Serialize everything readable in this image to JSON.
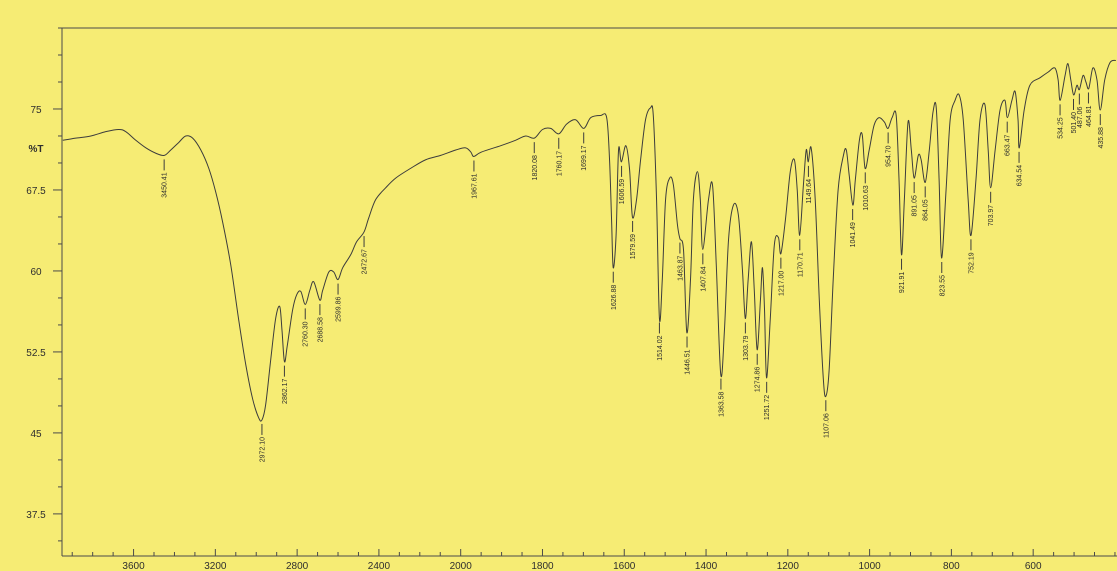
{
  "chart_data": {
    "type": "line",
    "ylabel": "%T",
    "xlim": [
      3950,
      395
    ],
    "ylim": [
      33.6,
      82.5
    ],
    "x_scale_change": 2000,
    "x_ticks": [
      3600,
      3200,
      2800,
      2400,
      2000,
      1800,
      1600,
      1400,
      1200,
      1000,
      800,
      600
    ],
    "y_ticks": [
      75,
      67.5,
      60,
      52.5,
      45,
      37.5
    ],
    "grid": false,
    "colors": {
      "background": "#f6ec74",
      "line": "#3c3c3c"
    },
    "series": [
      {
        "x": [
          3946,
          3883,
          3809,
          3736,
          3672,
          3638,
          3589,
          3540,
          3491,
          3450,
          3418,
          3379,
          3345,
          3311,
          3271,
          3232,
          3198,
          3164,
          3125,
          3086,
          3051,
          3017,
          2988,
          2972,
          2954,
          2929,
          2905,
          2885,
          2874,
          2862,
          2848,
          2822,
          2802,
          2782,
          2760,
          2738,
          2719,
          2689,
          2675,
          2645,
          2621,
          2600,
          2577,
          2538,
          2509,
          2473,
          2450,
          2416,
          2367,
          2318,
          2245,
          2171,
          2098,
          2024,
          1988,
          1975,
          1968,
          1950,
          1902,
          1866,
          1841,
          1820,
          1800,
          1780,
          1760,
          1741,
          1719,
          1699,
          1682,
          1658,
          1643,
          1636,
          1631,
          1627,
          1620,
          1614,
          1607,
          1596,
          1587,
          1580,
          1570,
          1560,
          1548,
          1536,
          1529,
          1521,
          1514,
          1507,
          1499,
          1489,
          1480,
          1470,
          1464,
          1455,
          1447,
          1438,
          1431,
          1421,
          1414,
          1408,
          1394,
          1384,
          1375,
          1364,
          1355,
          1345,
          1333,
          1321,
          1311,
          1304,
          1297,
          1289,
          1282,
          1275,
          1267,
          1262,
          1257,
          1252,
          1243,
          1233,
          1223,
          1217,
          1206,
          1194,
          1184,
          1177,
          1171,
          1162,
          1155,
          1150,
          1143,
          1133,
          1123,
          1113,
          1107,
          1099,
          1089,
          1077,
          1064,
          1057,
          1050,
          1041,
          1035,
          1025,
          1018,
          1011,
          1001,
          989,
          977,
          964,
          955,
          945,
          935,
          928,
          922,
          915,
          906,
          898,
          891,
          881,
          874,
          864,
          854,
          845,
          837,
          830,
          824,
          813,
          803,
          791,
          781,
          771,
          759,
          752,
          740,
          730,
          718,
          710,
          704,
          693,
          681,
          669,
          663,
          652,
          644,
          637,
          634,
          622,
          608,
          583,
          564,
          547,
          539,
          534,
          522,
          515,
          508,
          501,
          493,
          487,
          478,
          471,
          464,
          454,
          444,
          436,
          425,
          412,
          398
        ],
        "y": [
          72.1,
          72.3,
          72.5,
          72.9,
          73.1,
          72.9,
          72.1,
          71.4,
          70.9,
          70.7,
          71.2,
          71.9,
          72.5,
          72.3,
          71.2,
          69.5,
          67.3,
          64.5,
          60.6,
          55.5,
          51.3,
          48.1,
          46.4,
          46.2,
          47.6,
          51.8,
          55.6,
          56.7,
          54.5,
          51.6,
          53.1,
          56.4,
          57.8,
          58.1,
          56.9,
          58.2,
          59.0,
          57.3,
          58.2,
          59.9,
          59.9,
          59.2,
          60.3,
          61.5,
          62.7,
          63.6,
          64.9,
          66.6,
          67.7,
          68.6,
          69.5,
          70.3,
          70.7,
          71.2,
          71.4,
          71.0,
          70.6,
          71.0,
          71.6,
          72.1,
          72.5,
          72.3,
          73.1,
          73.2,
          72.7,
          73.6,
          74.0,
          73.2,
          74.2,
          74.4,
          74.2,
          70.3,
          64.7,
          60.3,
          63.3,
          71.2,
          70.1,
          71.6,
          69.4,
          65.0,
          66.6,
          70.3,
          74.0,
          75.1,
          74.4,
          66.6,
          55.6,
          59.2,
          66.6,
          68.6,
          68.0,
          64.3,
          63.0,
          61.9,
          54.3,
          59.2,
          66.6,
          69.2,
          66.6,
          62.0,
          66.6,
          67.9,
          60.6,
          50.4,
          54.5,
          62.9,
          66.1,
          65.2,
          60.1,
          55.6,
          59.2,
          62.7,
          58.2,
          52.7,
          57.3,
          60.3,
          56.4,
          50.1,
          55.5,
          62.4,
          63.1,
          61.6,
          64.7,
          69.2,
          70.3,
          67.5,
          63.3,
          67.9,
          71.2,
          70.1,
          71.4,
          66.6,
          57.3,
          49.9,
          48.4,
          50.8,
          59.2,
          67.5,
          70.7,
          71.2,
          68.9,
          66.1,
          68.4,
          72.1,
          72.6,
          69.5,
          71.2,
          73.5,
          74.2,
          73.8,
          73.2,
          74.2,
          74.4,
          68.4,
          61.5,
          66.6,
          73.8,
          71.2,
          68.6,
          70.7,
          70.3,
          68.2,
          71.2,
          74.7,
          75.1,
          68.4,
          61.2,
          67.5,
          74.0,
          75.8,
          76.3,
          74.0,
          66.6,
          63.3,
          68.4,
          74.0,
          75.4,
          71.2,
          67.7,
          71.2,
          74.9,
          75.8,
          74.2,
          75.8,
          76.6,
          74.0,
          71.4,
          74.9,
          77.2,
          77.9,
          78.4,
          78.8,
          77.7,
          75.8,
          78.1,
          79.2,
          77.7,
          76.3,
          77.2,
          76.8,
          78.1,
          77.5,
          76.9,
          78.8,
          77.7,
          74.9,
          77.7,
          79.3,
          79.5
        ]
      }
    ],
    "peak_labels": [
      {
        "label": "3450.41",
        "y": 70.7
      },
      {
        "label": "2972.10",
        "y": 46.2
      },
      {
        "label": "2862.17",
        "y": 51.6
      },
      {
        "label": "2760.30",
        "y": 56.9
      },
      {
        "label": "2688.58",
        "y": 57.3
      },
      {
        "label": "2599.86",
        "y": 59.2
      },
      {
        "label": "2472.67",
        "y": 63.6
      },
      {
        "label": "1967.61",
        "y": 70.6
      },
      {
        "label": "1820.08",
        "y": 72.3
      },
      {
        "label": "1760.17",
        "y": 72.7
      },
      {
        "label": "1699.17",
        "y": 73.2
      },
      {
        "label": "1626.88",
        "y": 60.3
      },
      {
        "label": "1606.59",
        "y": 70.1
      },
      {
        "label": "1579.59",
        "y": 65.0
      },
      {
        "label": "1514.02",
        "y": 55.6
      },
      {
        "label": "1463.87",
        "y": 63.0
      },
      {
        "label": "1446.51",
        "y": 54.3
      },
      {
        "label": "1407.84",
        "y": 62.0
      },
      {
        "label": "1363.58",
        "y": 50.4
      },
      {
        "label": "1303.79",
        "y": 55.6
      },
      {
        "label": "1274.86",
        "y": 52.7
      },
      {
        "label": "1251.72",
        "y": 50.1
      },
      {
        "label": "1217.00",
        "y": 61.6
      },
      {
        "label": "1170.71",
        "y": 63.3
      },
      {
        "label": "1149.64",
        "y": 70.1
      },
      {
        "label": "1107.06",
        "y": 48.4
      },
      {
        "label": "1041.49",
        "y": 66.1
      },
      {
        "label": "1010.63",
        "y": 69.5
      },
      {
        "label": "954.70",
        "y": 73.2
      },
      {
        "label": "921.91",
        "y": 61.5
      },
      {
        "label": "891.05",
        "y": 68.6
      },
      {
        "label": "864.05",
        "y": 68.2
      },
      {
        "label": "823.55",
        "y": 61.2
      },
      {
        "label": "752.19",
        "y": 63.3
      },
      {
        "label": "703.97",
        "y": 67.7
      },
      {
        "label": "663.47",
        "y": 74.2
      },
      {
        "label": "634.54",
        "y": 71.4
      },
      {
        "label": "534.25",
        "y": 75.8
      },
      {
        "label": "501.40",
        "y": 76.3
      },
      {
        "label": "487.06",
        "y": 76.8
      },
      {
        "label": "464.81",
        "y": 76.9
      },
      {
        "label": "435.88",
        "y": 74.9
      }
    ]
  }
}
